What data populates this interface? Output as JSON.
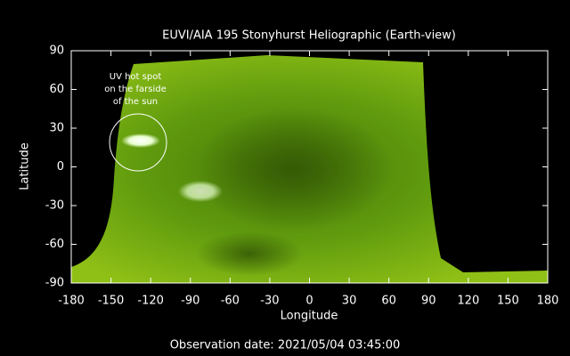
{
  "chart_data": {
    "type": "image",
    "title": "EUVI/AIA 195 Stonyhurst Heliographic (Earth-view)",
    "xlabel": "Longitude",
    "ylabel": "Latitude",
    "xlim": [
      -180,
      180
    ],
    "ylim": [
      -90,
      90
    ],
    "xticks": [
      -180,
      -150,
      -120,
      -90,
      -60,
      -30,
      0,
      30,
      60,
      90,
      120,
      150,
      180
    ],
    "yticks": [
      -90,
      -60,
      -30,
      0,
      30,
      60,
      90
    ],
    "annotation": [
      "UV hot spot",
      "on the farside",
      "of the sun"
    ],
    "footer": "Observation date: 2021/05/04 03:45:00"
  }
}
